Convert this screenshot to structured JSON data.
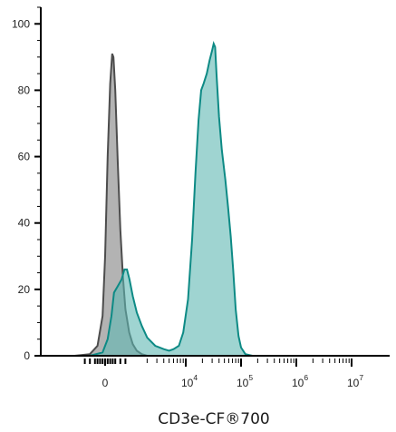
{
  "chart_data": {
    "type": "area",
    "title": "",
    "xlabel": "CD3e-CF®700",
    "ylabel": "",
    "x_scale": "biexponential",
    "ylim": [
      0,
      105
    ],
    "y_ticks": [
      0,
      20,
      40,
      60,
      80,
      100
    ],
    "x_tick_labels": [
      {
        "value": 0,
        "base": "0",
        "exp": ""
      },
      {
        "value": 10000,
        "base": "10",
        "exp": "4"
      },
      {
        "value": 100000,
        "base": "10",
        "exp": "5"
      },
      {
        "value": 1000000,
        "base": "10",
        "exp": "6"
      },
      {
        "value": 10000000,
        "base": "10",
        "exp": "7"
      }
    ],
    "series": [
      {
        "fill": "#b3b3b3",
        "stroke": "#4d4d4d",
        "points": [
          [
            -1200,
            0
          ],
          [
            -600,
            0.5
          ],
          [
            -300,
            3
          ],
          [
            -100,
            12
          ],
          [
            0,
            30
          ],
          [
            100,
            60
          ],
          [
            200,
            82
          ],
          [
            280,
            91
          ],
          [
            330,
            90
          ],
          [
            400,
            80
          ],
          [
            500,
            58
          ],
          [
            600,
            38
          ],
          [
            700,
            24
          ],
          [
            800,
            14
          ],
          [
            950,
            7
          ],
          [
            1100,
            3.5
          ],
          [
            1300,
            1.5
          ],
          [
            1600,
            0.5
          ],
          [
            2000,
            0
          ]
        ]
      },
      {
        "fill": "#5fb8b3",
        "stroke": "#0d8a85",
        "points": [
          [
            -600,
            0
          ],
          [
            -100,
            1
          ],
          [
            100,
            5
          ],
          [
            250,
            12
          ],
          [
            350,
            19
          ],
          [
            500,
            21
          ],
          [
            650,
            23
          ],
          [
            760,
            26
          ],
          [
            860,
            26
          ],
          [
            960,
            23
          ],
          [
            1100,
            18
          ],
          [
            1300,
            13
          ],
          [
            1600,
            9
          ],
          [
            2000,
            5.5
          ],
          [
            2800,
            3
          ],
          [
            4000,
            2
          ],
          [
            5000,
            1.5
          ],
          [
            6000,
            2
          ],
          [
            7500,
            3
          ],
          [
            9000,
            7
          ],
          [
            11000,
            17
          ],
          [
            13000,
            35
          ],
          [
            15000,
            55
          ],
          [
            17000,
            71
          ],
          [
            19000,
            80
          ],
          [
            21000,
            82
          ],
          [
            24000,
            85
          ],
          [
            27000,
            89
          ],
          [
            30000,
            92
          ],
          [
            32000,
            94
          ],
          [
            34000,
            93
          ],
          [
            36000,
            85
          ],
          [
            40000,
            72
          ],
          [
            45000,
            62
          ],
          [
            52000,
            53
          ],
          [
            58000,
            45
          ],
          [
            65000,
            36
          ],
          [
            72000,
            26
          ],
          [
            80000,
            14
          ],
          [
            90000,
            6
          ],
          [
            100000,
            2.5
          ],
          [
            120000,
            0.5
          ],
          [
            160000,
            0
          ]
        ]
      }
    ]
  }
}
